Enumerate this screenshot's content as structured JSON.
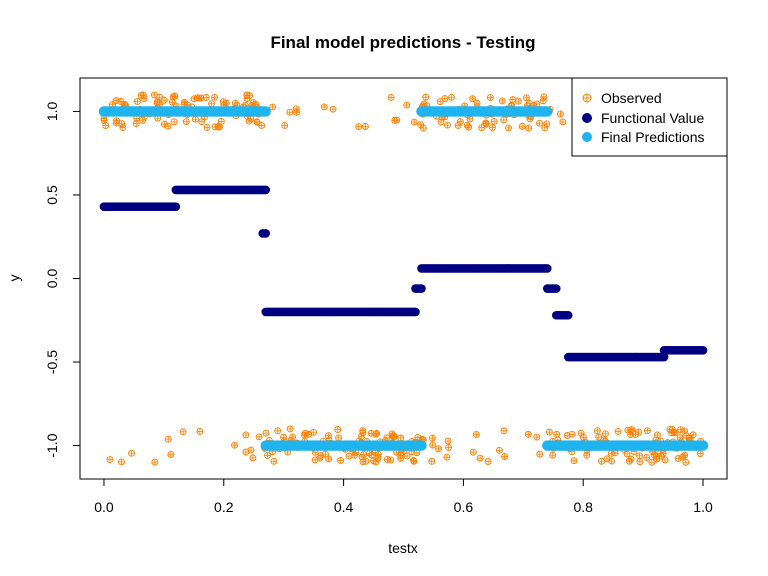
{
  "chart_data": {
    "type": "scatter",
    "title": "Final model predictions - Testing",
    "xlabel": "testx",
    "ylabel": "y",
    "xlim": [
      -0.04,
      1.04
    ],
    "ylim": [
      -1.2,
      1.2
    ],
    "x_ticks": [
      0.0,
      0.2,
      0.4,
      0.6,
      0.8,
      1.0
    ],
    "x_tick_labels": [
      "0.0",
      "0.2",
      "0.4",
      "0.6",
      "0.8",
      "1.0"
    ],
    "y_ticks": [
      -1.0,
      -0.5,
      0.0,
      0.5,
      1.0
    ],
    "y_tick_labels": [
      "-1.0",
      "-0.5",
      "0.0",
      "0.5",
      "1.0"
    ],
    "grid": false,
    "legend_position": "top-right",
    "x_domain": [
      0.0,
      1.0
    ],
    "series": [
      {
        "name": "Observed",
        "marker": "circle-plus-open",
        "color": "#FF7F00",
        "description": "Noisy binary observations at y≈+1 or y≈-1 with noise ±0.1",
        "regions": [
          {
            "x_from": 0.0,
            "x_to": 0.27,
            "y_level": 1.0
          },
          {
            "x_from": 0.27,
            "x_to": 0.53,
            "y_level": -1.0
          },
          {
            "x_from": 0.53,
            "x_to": 0.74,
            "y_level": 1.0
          },
          {
            "x_from": 0.74,
            "x_to": 1.0,
            "y_level": -1.0
          }
        ],
        "minority_fraction": 0.14,
        "noise": 0.1
      },
      {
        "name": "Functional Value",
        "marker": "filled-circle",
        "color": "#000080",
        "segments": [
          {
            "x_from": 0.0,
            "x_to": 0.12,
            "y": 0.43
          },
          {
            "x_from": 0.12,
            "x_to": 0.27,
            "y": 0.53
          },
          {
            "x_from": 0.265,
            "x_to": 0.27,
            "y": 0.27
          },
          {
            "x_from": 0.27,
            "x_to": 0.52,
            "y": -0.2
          },
          {
            "x_from": 0.52,
            "x_to": 0.53,
            "y": -0.06
          },
          {
            "x_from": 0.53,
            "x_to": 0.74,
            "y": 0.06
          },
          {
            "x_from": 0.74,
            "x_to": 0.755,
            "y": -0.06
          },
          {
            "x_from": 0.755,
            "x_to": 0.775,
            "y": -0.22
          },
          {
            "x_from": 0.775,
            "x_to": 0.935,
            "y": -0.47
          },
          {
            "x_from": 0.935,
            "x_to": 1.0,
            "y": -0.43
          }
        ]
      },
      {
        "name": "Final Predictions",
        "marker": "filled-circle",
        "color": "#1EB4F0",
        "segments": [
          {
            "x_from": 0.0,
            "x_to": 0.27,
            "y": 1.0
          },
          {
            "x_from": 0.27,
            "x_to": 0.53,
            "y": -1.0
          },
          {
            "x_from": 0.53,
            "x_to": 0.74,
            "y": 1.0
          },
          {
            "x_from": 0.74,
            "x_to": 1.0,
            "y": -1.0
          }
        ]
      }
    ]
  }
}
